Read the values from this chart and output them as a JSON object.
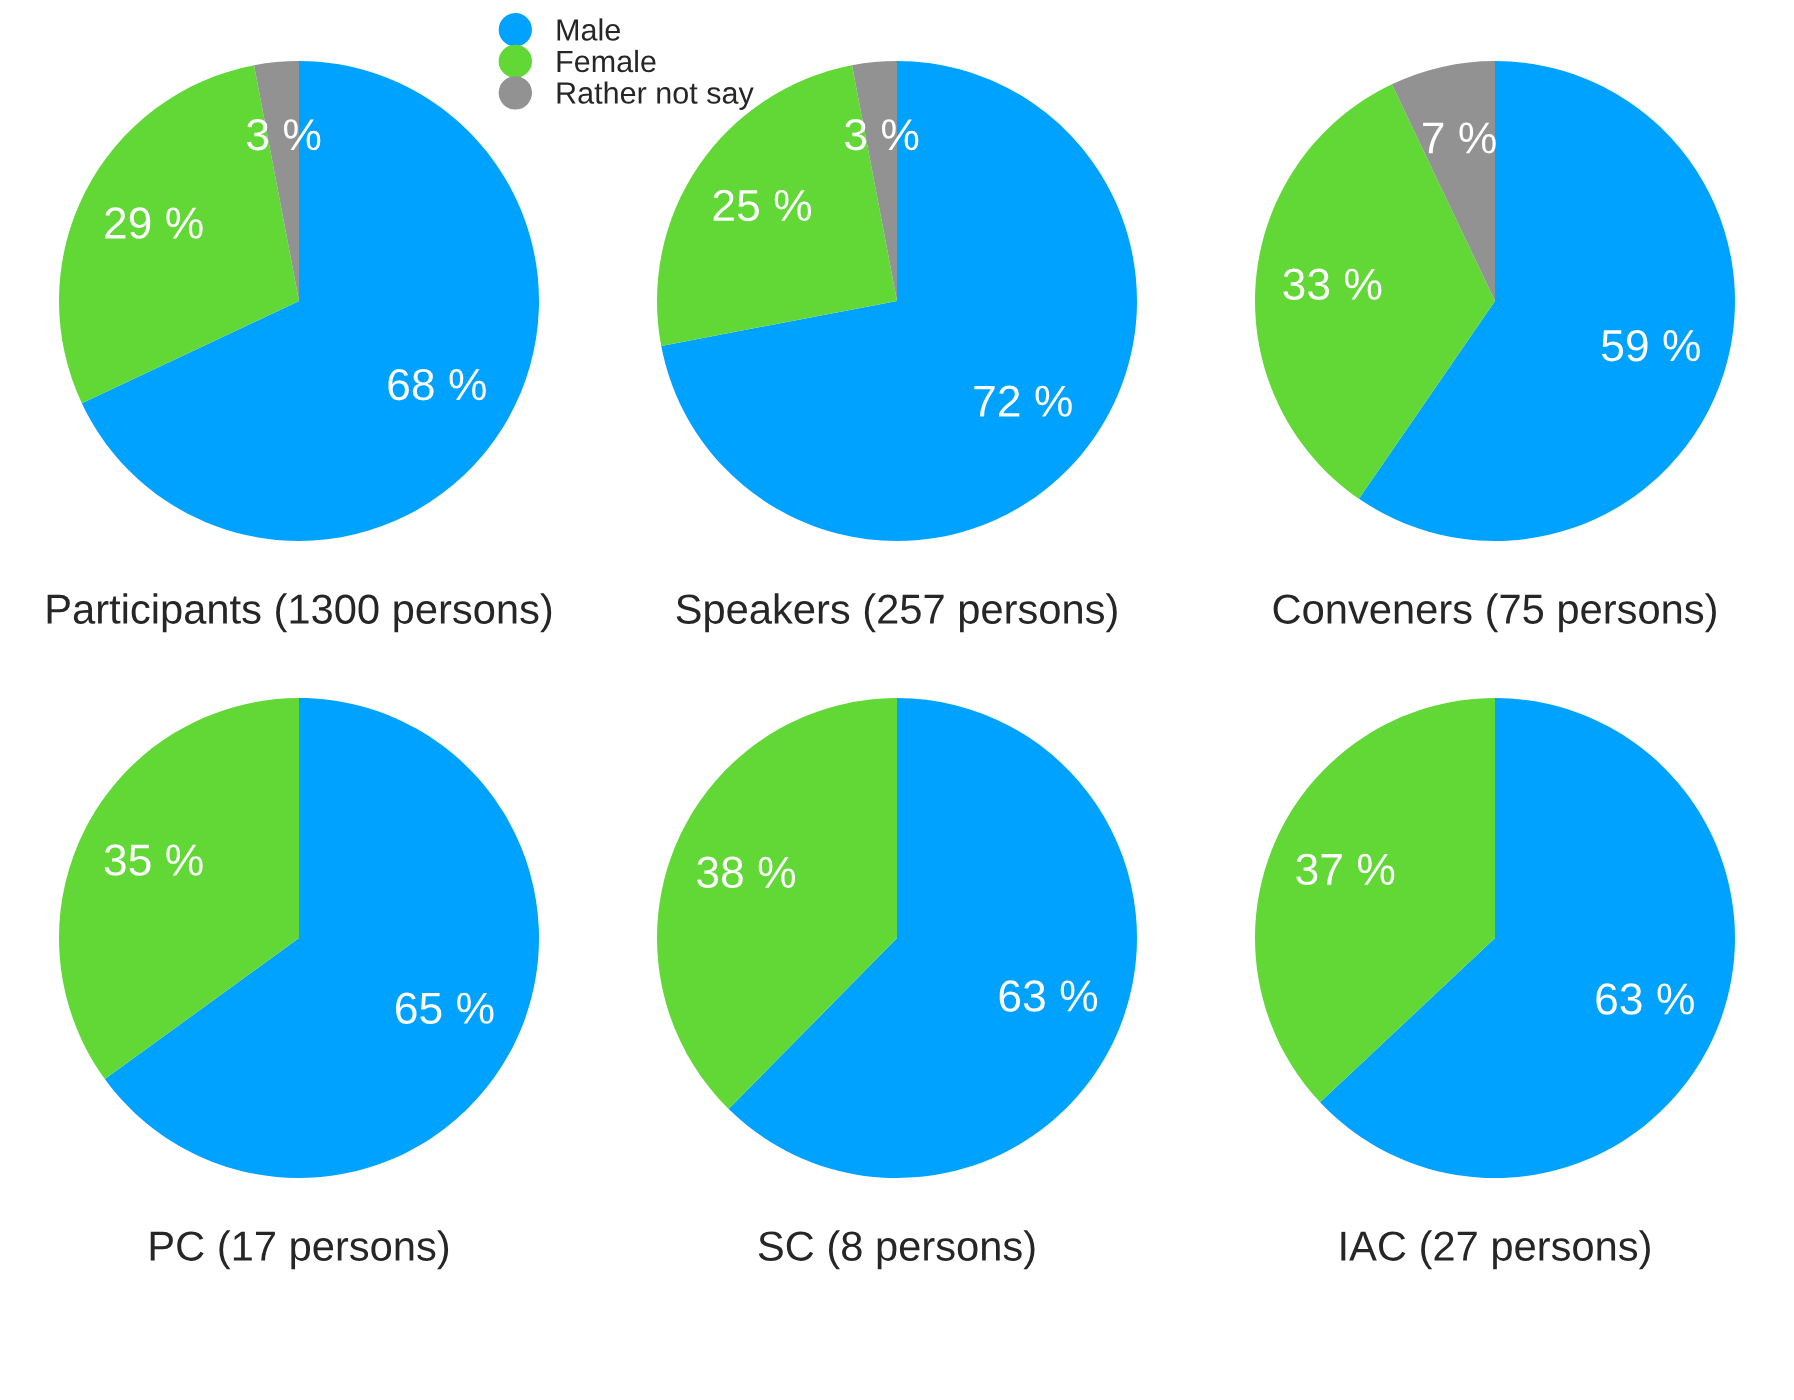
{
  "chart_data": [
    {
      "type": "pie",
      "title": "Participants (1300 persons)",
      "categories": [
        "Male",
        "Female",
        "Rather not say"
      ],
      "values": [
        68,
        29,
        3
      ],
      "value_labels": [
        "68 %",
        "29 %",
        "3 %"
      ],
      "colors": [
        "#00a2ff",
        "#61d836",
        "#929292"
      ],
      "legend": "top"
    },
    {
      "type": "pie",
      "title": "Speakers (257 persons)",
      "categories": [
        null,
        null,
        null
      ],
      "values": [
        72,
        25,
        3
      ],
      "value_labels": [
        "72 %",
        "25 %",
        "3 %"
      ],
      "colors": [
        "#00a2ff",
        "#61d836",
        "#929292"
      ]
    },
    {
      "type": "pie",
      "title": "Conveners (75 persons)",
      "categories": [
        null,
        null,
        null
      ],
      "values": [
        59,
        33,
        7
      ],
      "value_labels": [
        "59 %",
        "33 %",
        "7 %"
      ],
      "colors": [
        "#00a2ff",
        "#61d836",
        "#929292"
      ]
    },
    {
      "type": "pie",
      "title": "PC (17 persons)",
      "categories": [
        null,
        null
      ],
      "values": [
        65,
        35
      ],
      "value_labels": [
        "65 %",
        "35 %"
      ],
      "colors": [
        "#00a2ff",
        "#61d836"
      ]
    },
    {
      "type": "pie",
      "title": "SC (8 persons)",
      "categories": [
        null,
        null
      ],
      "values": [
        63,
        38
      ],
      "value_labels": [
        "63 %",
        "38 %"
      ],
      "colors": [
        "#00a2ff",
        "#61d836"
      ]
    },
    {
      "type": "pie",
      "title": "IAC (27 persons)",
      "categories": [
        null,
        null
      ],
      "values": [
        63,
        37
      ],
      "value_labels": [
        "63 %",
        "37 %"
      ],
      "colors": [
        "#00a2ff",
        "#61d836"
      ]
    }
  ]
}
